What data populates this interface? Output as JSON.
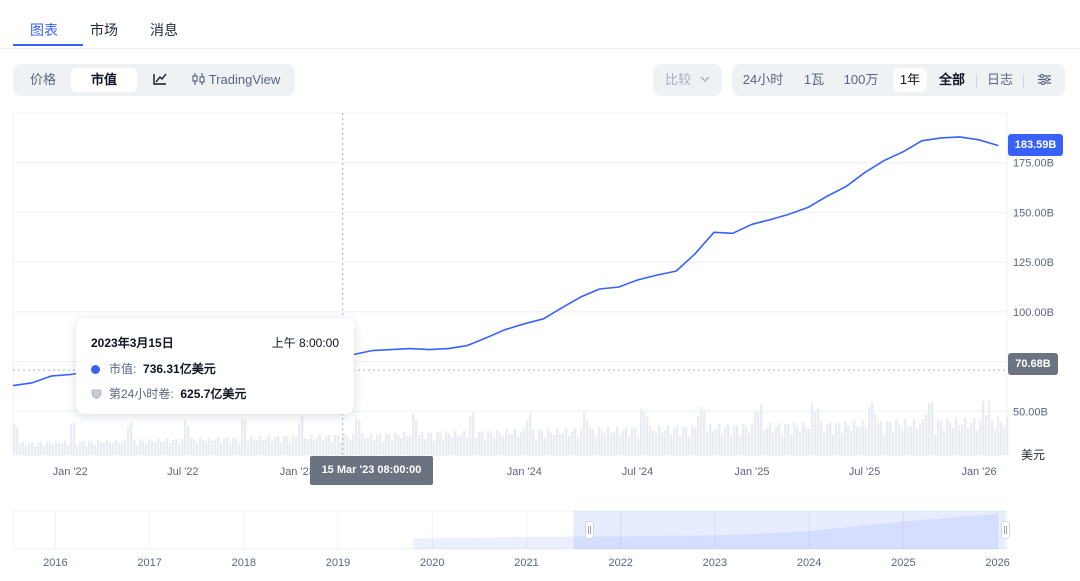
{
  "tabs": [
    {
      "label": "图表",
      "active": true
    },
    {
      "label": "市场",
      "active": false
    },
    {
      "label": "消息",
      "active": false
    }
  ],
  "toolbar_left": {
    "price": "价格",
    "market_cap": "市值",
    "line_icon": "line-chart-icon",
    "tradingview": "TradingView",
    "tradingview_icon": "candlestick-icon"
  },
  "toolbar_right": {
    "compare": "比较",
    "ranges": [
      "24小时",
      "1瓦",
      "100万",
      "1年",
      "全部"
    ],
    "active_range": "1年",
    "bold_range": "全部",
    "log": "日志",
    "settings_icon": "settings-sliders-icon"
  },
  "tooltip": {
    "date": "2023年3月15日",
    "time": "上午 8:00:00",
    "market_cap_label": "市值:",
    "market_cap_value": "736.31亿美元",
    "volume_label": "第24小时卷:",
    "volume_value": "625.7亿美元"
  },
  "chart_data": {
    "type": "line",
    "series": [
      {
        "x": [
          "2021-10-01",
          "2021-11-01",
          "2021-12-01",
          "2022-01-01",
          "2022-02-01",
          "2022-03-01",
          "2022-04-01",
          "2022-05-01",
          "2022-06-01",
          "2022-07-01",
          "2022-08-01",
          "2022-09-01",
          "2022-10-01",
          "2022-11-01",
          "2022-12-01",
          "2023-01-01",
          "2023-02-01",
          "2023-03-01",
          "2023-03-15",
          "2023-04-01",
          "2023-05-01",
          "2023-06-01",
          "2023-07-01",
          "2023-08-01",
          "2023-09-01",
          "2023-10-01",
          "2023-11-01",
          "2023-12-01",
          "2024-01-01",
          "2024-02-01",
          "2024-03-01",
          "2024-04-01",
          "2024-05-01",
          "2024-06-01",
          "2024-07-01",
          "2024-08-01",
          "2024-09-01",
          "2024-10-01",
          "2024-11-01",
          "2024-12-01",
          "2025-01-01",
          "2025-02-01",
          "2025-03-01",
          "2025-04-01",
          "2025-05-01",
          "2025-06-01",
          "2025-07-01",
          "2025-08-01",
          "2025-09-01",
          "2025-10-01",
          "2025-11-01",
          "2025-12-01",
          "2026-01-01",
          "2026-02-01"
        ],
        "values": [
          62.9,
          64.3,
          67.7,
          68.5,
          70.0,
          70.5,
          70.0,
          71.5,
          71.5,
          70.0,
          68.5,
          68.5,
          69.5,
          70.5,
          71.5,
          72.5,
          73.0,
          73.0,
          73.6,
          78.5,
          80.5,
          81.0,
          81.5,
          81.0,
          81.5,
          83.0,
          87.0,
          91.0,
          94.0,
          96.5,
          102.0,
          107.5,
          111.5,
          112.5,
          116.0,
          118.5,
          120.5,
          129.0,
          140.0,
          139.5,
          144.0,
          146.5,
          149.0,
          152.5,
          158.0,
          163.0,
          170.0,
          176.0,
          180.5,
          186.0,
          187.5,
          188.0,
          186.5,
          183.6
        ]
      }
    ],
    "y_ticks": [
      "50.00B",
      "75.00B",
      "100.00B",
      "125.00B",
      "150.00B",
      "175.00B"
    ],
    "y_tick_values": [
      50,
      75,
      100,
      125,
      150,
      175
    ],
    "x_ticks": [
      "Jan '22",
      "Jul '22",
      "Jan '23",
      "Jul '23",
      "Jan '24",
      "Jul '24",
      "Jan '25",
      "Jul '25",
      "Jan '26"
    ],
    "x_tick_dates": [
      "2022-01-01",
      "2022-07-01",
      "2023-01-01",
      "2023-07-01",
      "2024-01-01",
      "2024-07-01",
      "2025-01-01",
      "2025-07-01",
      "2026-01-01"
    ],
    "ylim": [
      28,
      200
    ],
    "current_value_label": "183.59B",
    "current_value": 183.59,
    "crosshair_value_label": "70.68B",
    "crosshair_value": 70.68,
    "crosshair_date_label": "15 Mar '23 08:00:00",
    "crosshair_date": "2023-03-15",
    "unit": "美元",
    "grid": true,
    "navigator_years": [
      "2016",
      "2017",
      "2018",
      "2019",
      "2020",
      "2021",
      "2022",
      "2023",
      "2024",
      "2025",
      "2026"
    ],
    "navigator_selection": [
      "2021-07-01",
      "2026-02-01"
    ],
    "colors": {
      "line": "#3861fb",
      "badge_blue": "#3861fb",
      "badge_gray": "#6b7280",
      "volume": "#e9edf2"
    }
  }
}
